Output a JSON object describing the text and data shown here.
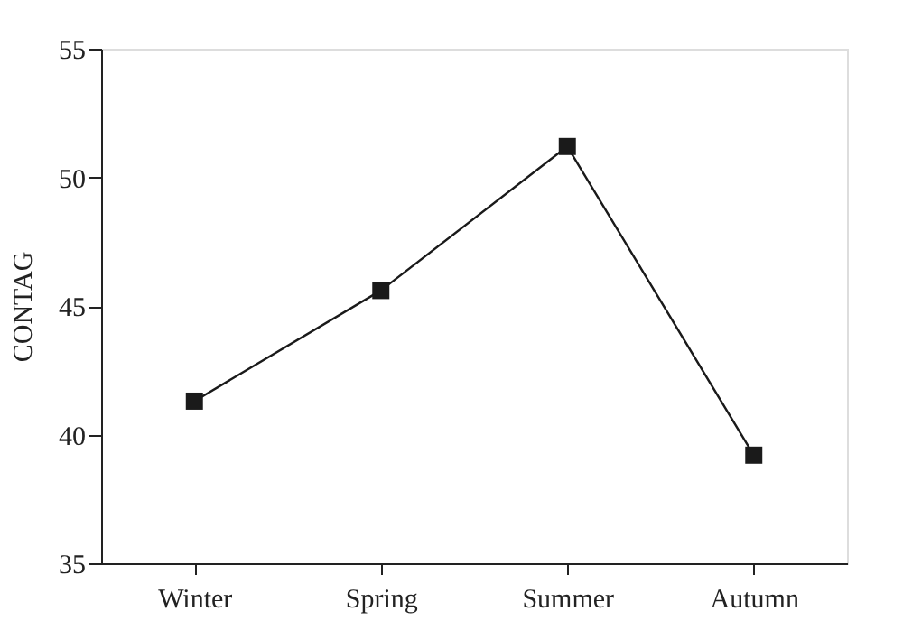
{
  "chart_data": {
    "type": "line",
    "ylabel": "CONTAG",
    "categories": [
      "Winter",
      "Spring",
      "Summer",
      "Autumn"
    ],
    "series": [
      {
        "color": "#1a1a1a",
        "values": [
          41.3,
          45.6,
          51.2,
          39.2
        ]
      }
    ],
    "ylim": [
      35,
      55
    ],
    "yticks": [
      35,
      40,
      45,
      50,
      55
    ],
    "marker": "square",
    "line_style": "solid",
    "grid": false
  }
}
